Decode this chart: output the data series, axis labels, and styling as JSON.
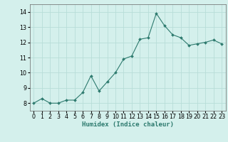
{
  "x": [
    0,
    1,
    2,
    3,
    4,
    5,
    6,
    7,
    8,
    9,
    10,
    11,
    12,
    13,
    14,
    15,
    16,
    17,
    18,
    19,
    20,
    21,
    22,
    23
  ],
  "y": [
    8.0,
    8.3,
    8.0,
    8.0,
    8.2,
    8.2,
    8.7,
    9.8,
    8.8,
    9.4,
    10.0,
    10.9,
    11.1,
    12.2,
    12.3,
    13.9,
    13.1,
    12.5,
    12.3,
    11.8,
    11.9,
    12.0,
    12.15,
    11.9
  ],
  "line_color": "#2d7a6e",
  "marker": "D",
  "marker_size": 2.0,
  "bg_color": "#d4f0ec",
  "grid_color": "#b8ddd8",
  "xlabel": "Humidex (Indice chaleur)",
  "ylim": [
    7.5,
    14.5
  ],
  "xlim": [
    -0.5,
    23.5
  ],
  "yticks": [
    8,
    9,
    10,
    11,
    12,
    13,
    14
  ],
  "xticks": [
    0,
    1,
    2,
    3,
    4,
    5,
    6,
    7,
    8,
    9,
    10,
    11,
    12,
    13,
    14,
    15,
    16,
    17,
    18,
    19,
    20,
    21,
    22,
    23
  ],
  "label_fontsize": 6.5,
  "tick_fontsize": 5.8
}
